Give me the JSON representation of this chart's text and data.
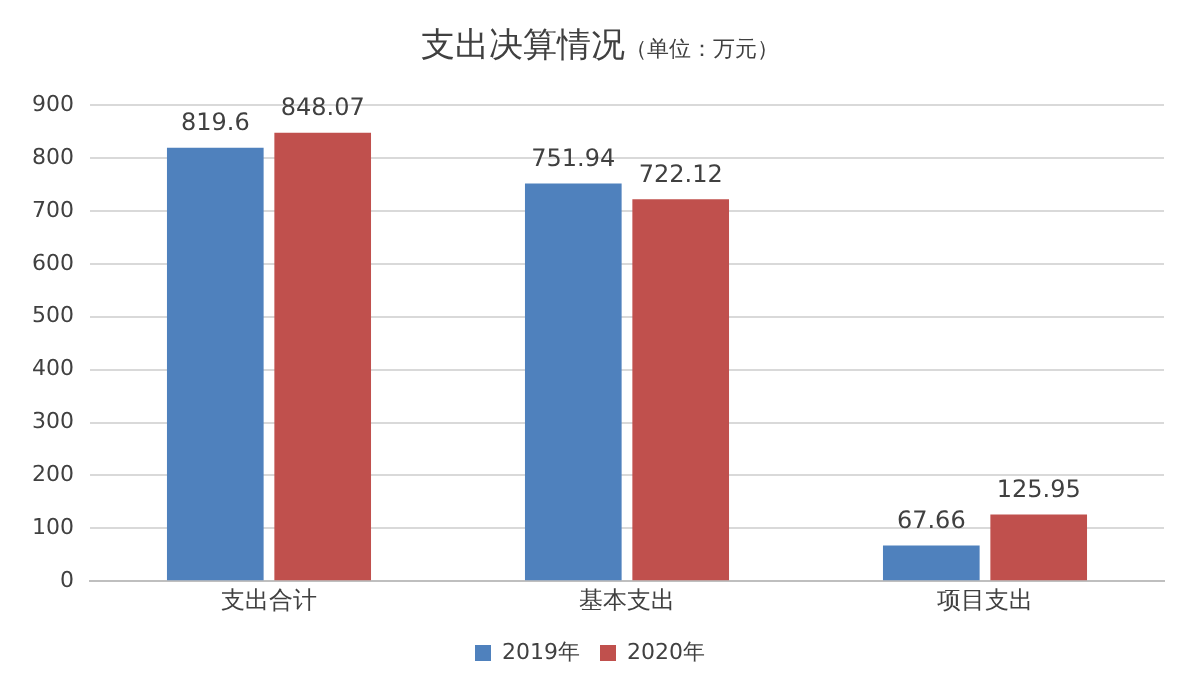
{
  "chart_data": {
    "type": "bar",
    "title": "支出决算情况",
    "subtitle": "（单位：万元）",
    "categories": [
      "支出合计",
      "基本支出",
      "项目支出"
    ],
    "series": [
      {
        "name": "2019年",
        "color": "#4f81bd",
        "values": [
          819.6,
          751.94,
          67.66
        ]
      },
      {
        "name": "2020年",
        "color": "#c0504d",
        "values": [
          848.07,
          722.12,
          125.95
        ]
      }
    ],
    "ylim": [
      0,
      900
    ],
    "yticks": [
      0,
      100,
      200,
      300,
      400,
      500,
      600,
      700,
      800,
      900
    ],
    "grid": "y",
    "legend": "bottom",
    "data_labels": true
  }
}
